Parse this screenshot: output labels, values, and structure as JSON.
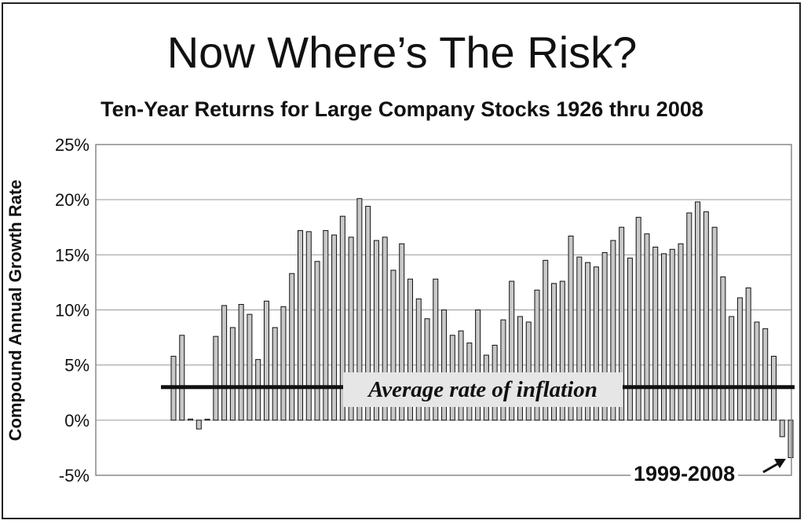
{
  "chart_data": {
    "type": "bar",
    "title": "Now Where’s The Risk?",
    "subtitle": "Ten-Year Returns for Large Company Stocks 1926 thru 2008",
    "ylabel": "Compound Annual Growth Rate",
    "xlabel": "",
    "ylim": [
      -5,
      25
    ],
    "yticks": [
      "25%",
      "20%",
      "15%",
      "10%",
      "5%",
      "0%",
      "-5%"
    ],
    "grid": "horizontal",
    "inflation_line": {
      "label": "Average rate of inflation",
      "value": 3.0
    },
    "callout": "1999-2008",
    "series": [
      {
        "values": [
          5.8,
          7.7,
          0.1,
          -0.8,
          0,
          7.6,
          10.4,
          8.4,
          10.5,
          9.6,
          5.5,
          10.8,
          8.4,
          10.3,
          13.3,
          17.2,
          17.1,
          14.4,
          17.2,
          16.8,
          18.5,
          16.6,
          20.1,
          19.4,
          16.3,
          16.6,
          13.6,
          16.0,
          12.8,
          11.0,
          9.2,
          12.8,
          10.0,
          7.7,
          8.1,
          7.0,
          10.0,
          5.9,
          6.8,
          9.1,
          12.6,
          9.4,
          8.9,
          11.8,
          14.5,
          12.4,
          12.6,
          16.7,
          14.8,
          14.3,
          13.9,
          15.2,
          16.3,
          17.5,
          14.7,
          18.4,
          16.9,
          15.7,
          15.1,
          15.5,
          16.0,
          18.8,
          19.8,
          18.9,
          17.5,
          13.0,
          9.4,
          11.1,
          12.0,
          8.9,
          8.3,
          5.8,
          -1.5,
          -3.4
        ]
      }
    ]
  }
}
